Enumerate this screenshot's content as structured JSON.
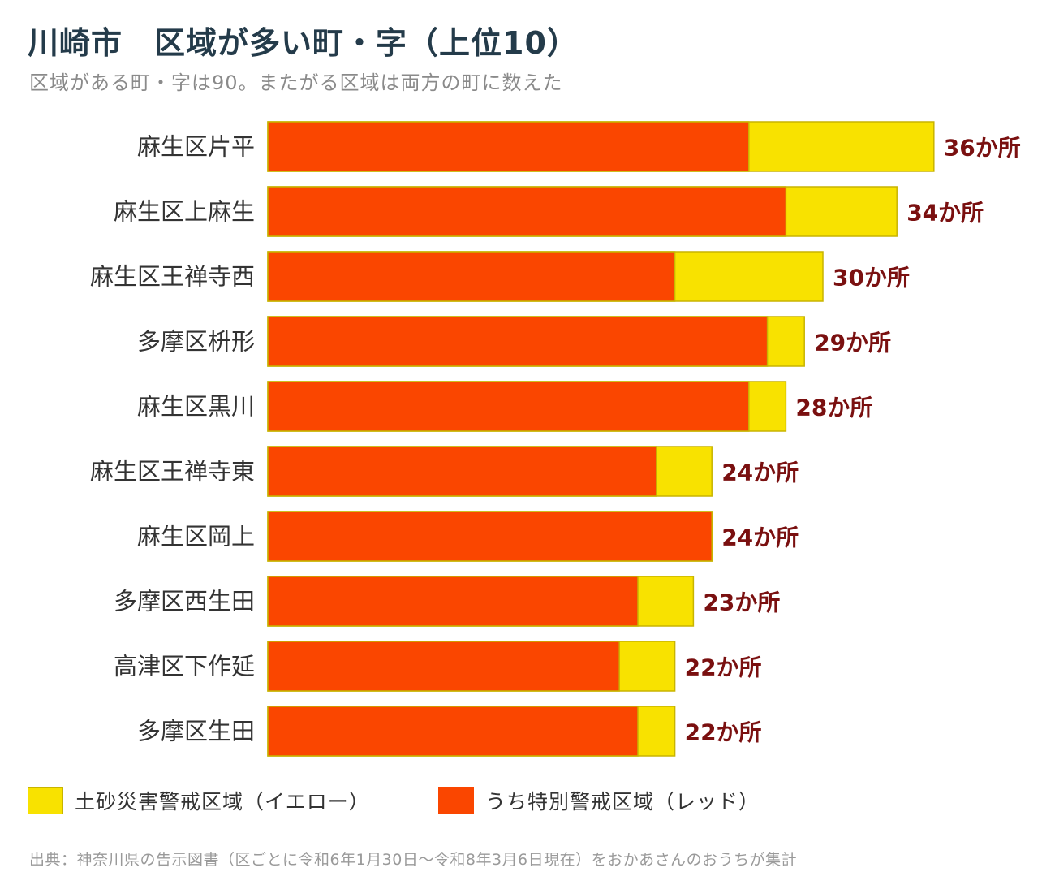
{
  "header": {
    "title": "川崎市　区域が多い町・字（上位10）",
    "subtitle": "区域がある町・字は90。またがる区域は両方の町に数えた"
  },
  "colors": {
    "yellow": "#f8e200",
    "yellow_border": "#c8b400",
    "red": "#fa4600",
    "value_label": "#7a1010",
    "category_label": "#333333"
  },
  "legend": {
    "yellow_label": "土砂災害警戒区域（イエロー）",
    "red_label": "うち特別警戒区域（レッド）"
  },
  "source": "出典：神奈川県の告示図書（区ごとに令和6年1月30日～令和8年3月6日現在）をおかあさんのおうちが集計",
  "chart_data": {
    "type": "bar",
    "orientation": "horizontal",
    "categories": [
      "麻生区片平",
      "麻生区上麻生",
      "麻生区王禅寺西",
      "多摩区枡形",
      "麻生区黒川",
      "麻生区王禅寺東",
      "麻生区岡上",
      "多摩区西生田",
      "高津区下作延",
      "多摩区生田"
    ],
    "series": [
      {
        "name": "土砂災害警戒区域（イエロー）",
        "values": [
          36,
          34,
          30,
          29,
          28,
          24,
          24,
          23,
          22,
          22
        ]
      },
      {
        "name": "うち特別警戒区域（レッド）",
        "values": [
          26,
          28,
          22,
          27,
          26,
          21,
          24,
          20,
          19,
          20
        ]
      }
    ],
    "value_labels": [
      "36か所",
      "34か所",
      "30か所",
      "29か所",
      "28か所",
      "24か所",
      "24か所",
      "23か所",
      "22か所",
      "22か所"
    ],
    "xlim": [
      0,
      36
    ],
    "grid": false,
    "legend_position": "bottom"
  }
}
